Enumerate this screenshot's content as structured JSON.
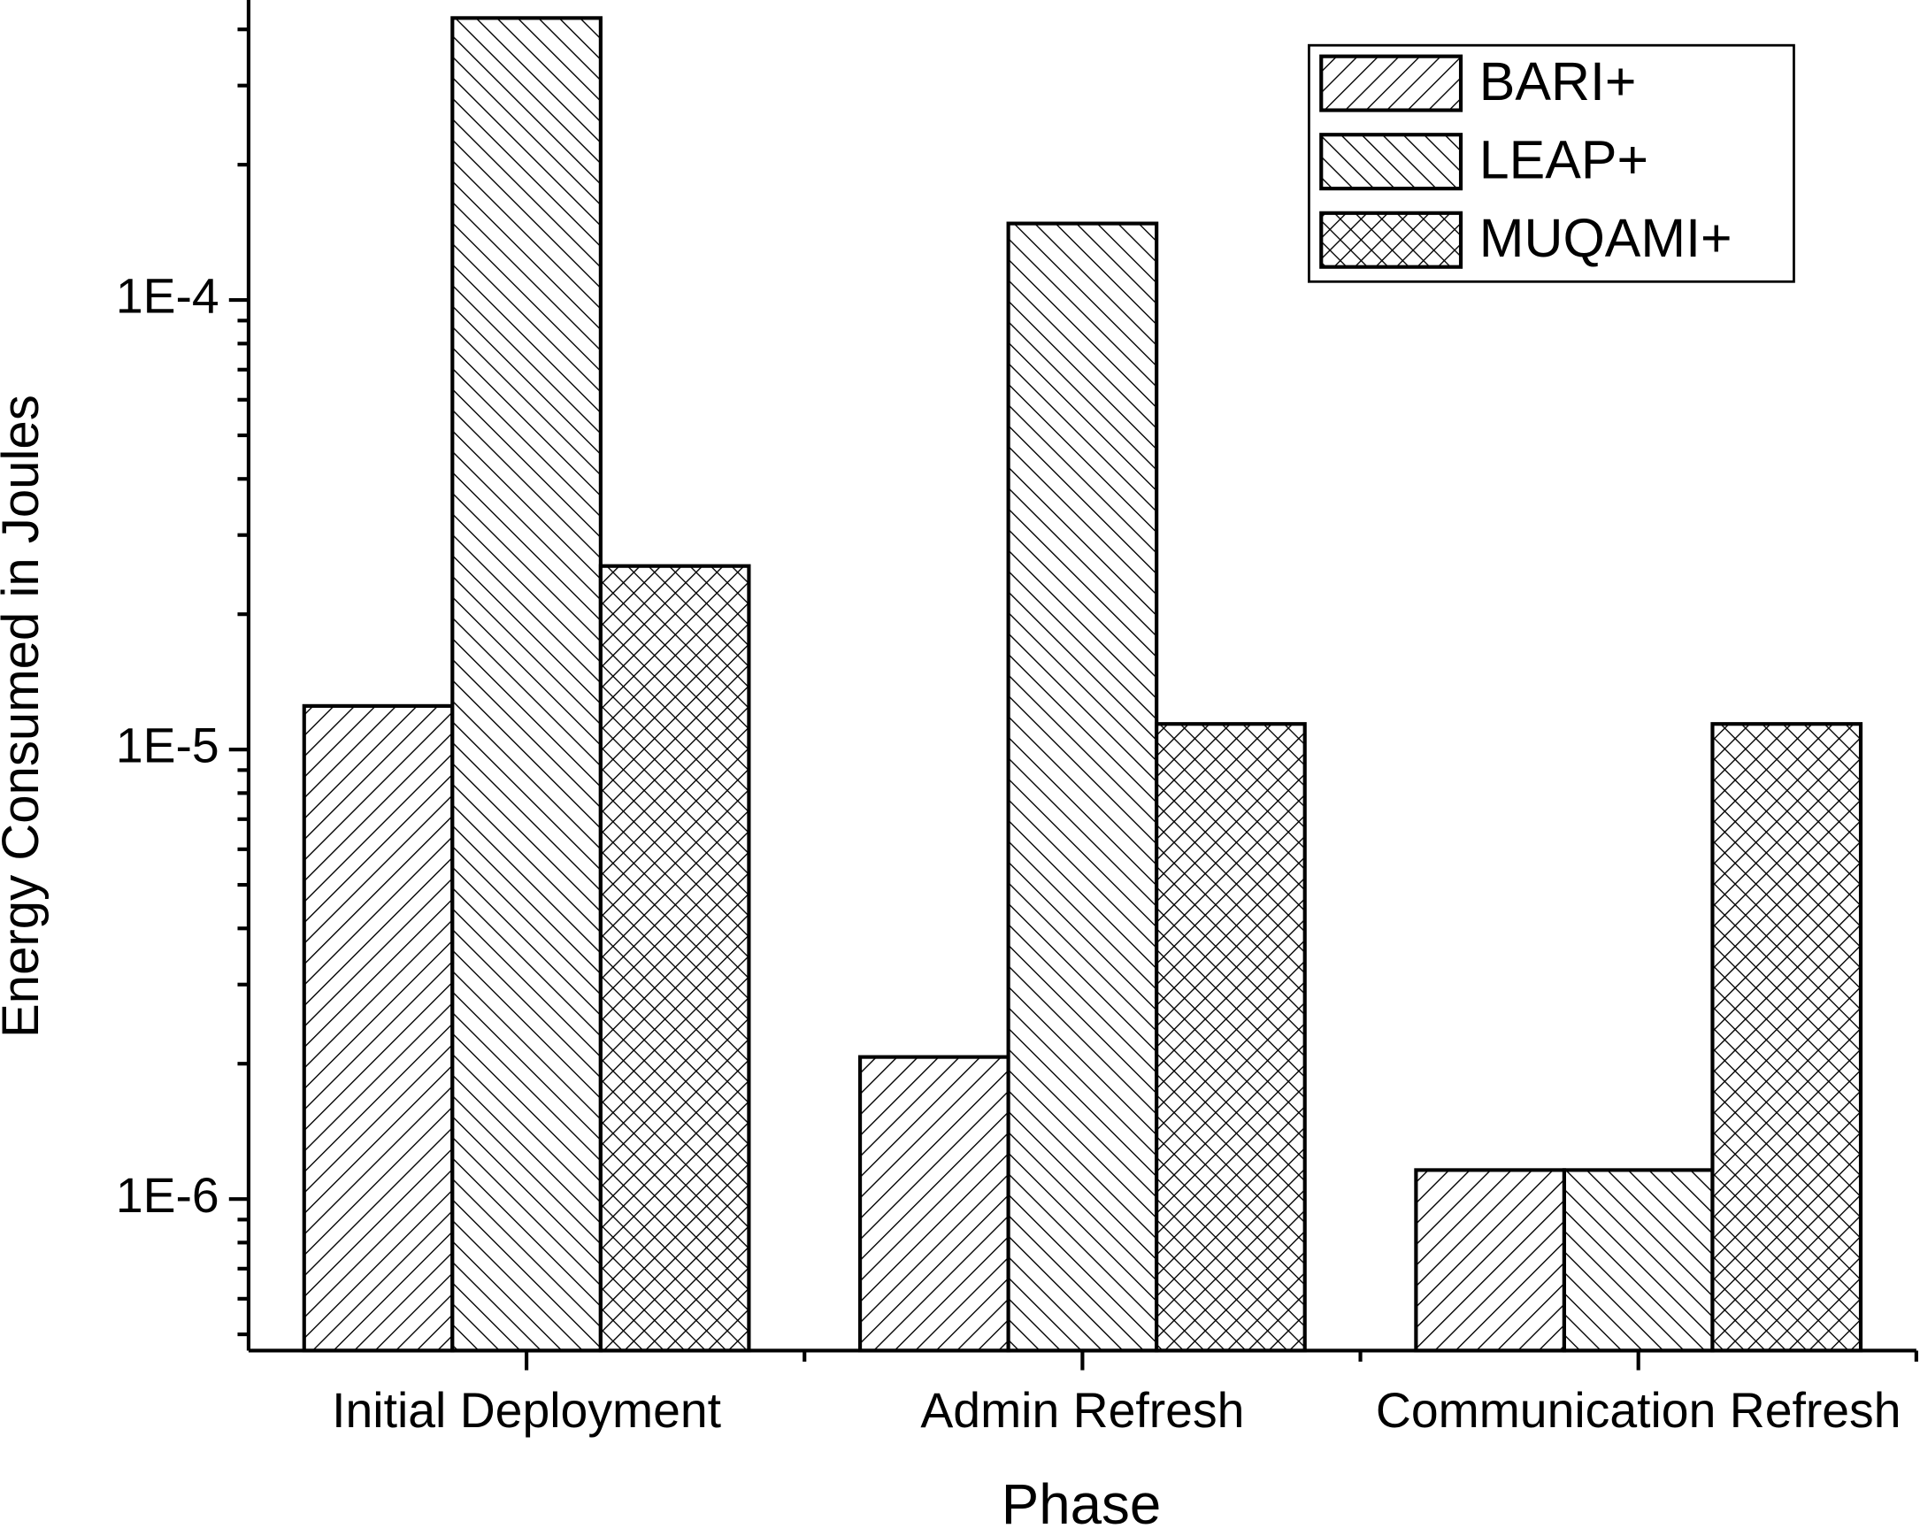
{
  "chart_data": {
    "type": "bar",
    "x_label": "Phase",
    "y_label": "Energy Consumed in Joules",
    "categories": [
      "Initial Deployment",
      "Admin Refresh",
      "Communication Refresh"
    ],
    "series": [
      {
        "name": "BARI+",
        "hatch": "/",
        "color": "#000000",
        "values": [
          1.25e-05,
          2.07e-06,
          1.16e-06
        ]
      },
      {
        "name": "LEAP+",
        "hatch": "\\",
        "color": "#000000",
        "values": [
          0.000424,
          0.000148,
          1.16e-06
        ]
      },
      {
        "name": "MUQAMI+",
        "hatch": "x",
        "color": "#000000",
        "values": [
          2.56e-05,
          1.14e-05,
          1.14e-05
        ]
      }
    ],
    "log_scale_y": true,
    "ylim": [
      4.6e-07,
      0.000465
    ],
    "yticks": [
      {
        "value": 1e-06,
        "label": "1E-6"
      },
      {
        "value": 1e-05,
        "label": "1E-5"
      },
      {
        "value": 0.0001,
        "label": "1E-4"
      }
    ],
    "yminorticks": [
      5e-07,
      6e-07,
      7e-07,
      8e-07,
      9e-07,
      2e-06,
      3e-06,
      4e-06,
      5e-06,
      6e-06,
      7e-06,
      8e-06,
      9e-06,
      2e-05,
      3e-05,
      4e-05,
      5e-05,
      6e-05,
      7e-05,
      8e-05,
      9e-05,
      0.0002,
      0.0003,
      0.0004
    ],
    "legend": "top-right",
    "grid": false
  }
}
